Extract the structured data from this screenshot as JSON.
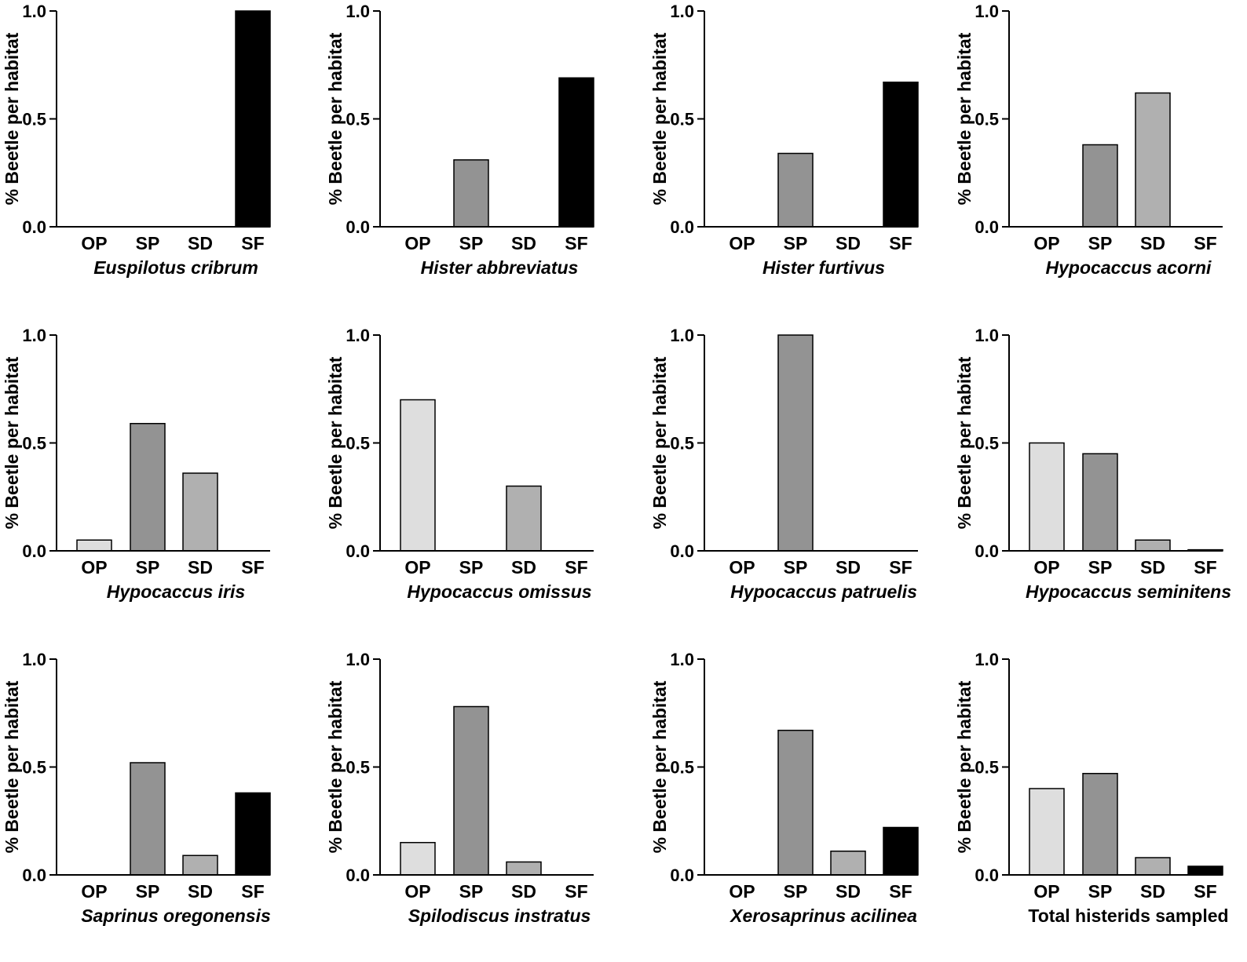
{
  "chart_data": [
    {
      "type": "bar",
      "title": "Euspilotus cribrum",
      "title_italic": true,
      "ylabel": "% Beetle per habitat",
      "categories": [
        "OP",
        "SP",
        "SD",
        "SF"
      ],
      "values": [
        0,
        0,
        0,
        1.0
      ],
      "ylim": [
        0,
        1.0
      ],
      "yticks": [
        "0.0",
        "0.5",
        "1.0"
      ],
      "grid": false
    },
    {
      "type": "bar",
      "title": "Hister abbreviatus",
      "title_italic": true,
      "ylabel": "% Beetle per habitat",
      "categories": [
        "OP",
        "SP",
        "SD",
        "SF"
      ],
      "values": [
        0,
        0.31,
        0,
        0.69
      ],
      "ylim": [
        0,
        1.0
      ],
      "yticks": [
        "0.0",
        "0.5",
        "1.0"
      ],
      "grid": false
    },
    {
      "type": "bar",
      "title": "Hister furtivus",
      "title_italic": true,
      "ylabel": "% Beetle per habitat",
      "categories": [
        "OP",
        "SP",
        "SD",
        "SF"
      ],
      "values": [
        0,
        0.34,
        0,
        0.67
      ],
      "ylim": [
        0,
        1.0
      ],
      "yticks": [
        "0.0",
        "0.5",
        "1.0"
      ],
      "grid": false
    },
    {
      "type": "bar",
      "title": "Hypocaccus acorni",
      "title_italic": true,
      "ylabel": "% Beetle per habitat",
      "categories": [
        "OP",
        "SP",
        "SD",
        "SF"
      ],
      "values": [
        0,
        0.38,
        0.62,
        0
      ],
      "ylim": [
        0,
        1.0
      ],
      "yticks": [
        "0.0",
        "0.5",
        "1.0"
      ],
      "grid": false
    },
    {
      "type": "bar",
      "title": "Hypocaccus iris",
      "title_italic": true,
      "ylabel": "% Beetle per habitat",
      "categories": [
        "OP",
        "SP",
        "SD",
        "SF"
      ],
      "values": [
        0.05,
        0.59,
        0.36,
        0
      ],
      "ylim": [
        0,
        1.0
      ],
      "yticks": [
        "0.0",
        "0.5",
        "1.0"
      ],
      "grid": false
    },
    {
      "type": "bar",
      "title": "Hypocaccus omissus",
      "title_italic": true,
      "ylabel": "% Beetle per habitat",
      "categories": [
        "OP",
        "SP",
        "SD",
        "SF"
      ],
      "values": [
        0.7,
        0,
        0.3,
        0
      ],
      "ylim": [
        0,
        1.0
      ],
      "yticks": [
        "0.0",
        "0.5",
        "1.0"
      ],
      "grid": false
    },
    {
      "type": "bar",
      "title": "Hypocaccus patruelis",
      "title_italic": true,
      "ylabel": "% Beetle per habitat",
      "categories": [
        "OP",
        "SP",
        "SD",
        "SF"
      ],
      "values": [
        0,
        1.0,
        0,
        0
      ],
      "ylim": [
        0,
        1.0
      ],
      "yticks": [
        "0.0",
        "0.5",
        "1.0"
      ],
      "grid": false
    },
    {
      "type": "bar",
      "title": "Hypocaccus seminitens",
      "title_italic": true,
      "ylabel": "% Beetle per habitat",
      "categories": [
        "OP",
        "SP",
        "SD",
        "SF"
      ],
      "values": [
        0.5,
        0.45,
        0.05,
        0.005
      ],
      "ylim": [
        0,
        1.0
      ],
      "yticks": [
        "0.0",
        "0.5",
        "1.0"
      ],
      "grid": false
    },
    {
      "type": "bar",
      "title": "Saprinus oregonensis",
      "title_italic": true,
      "ylabel": "% Beetle per habitat",
      "categories": [
        "OP",
        "SP",
        "SD",
        "SF"
      ],
      "values": [
        0,
        0.52,
        0.09,
        0.38
      ],
      "ylim": [
        0,
        1.0
      ],
      "yticks": [
        "0.0",
        "0.5",
        "1.0"
      ],
      "grid": false
    },
    {
      "type": "bar",
      "title": "Spilodiscus instratus",
      "title_italic": true,
      "ylabel": "% Beetle per habitat",
      "categories": [
        "OP",
        "SP",
        "SD",
        "SF"
      ],
      "values": [
        0.15,
        0.78,
        0.06,
        0
      ],
      "ylim": [
        0,
        1.0
      ],
      "yticks": [
        "0.0",
        "0.5",
        "1.0"
      ],
      "grid": false
    },
    {
      "type": "bar",
      "title": "Xerosaprinus acilinea",
      "title_italic": true,
      "ylabel": "% Beetle per habitat",
      "categories": [
        "OP",
        "SP",
        "SD",
        "SF"
      ],
      "values": [
        0,
        0.67,
        0.11,
        0.22
      ],
      "ylim": [
        0,
        1.0
      ],
      "yticks": [
        "0.0",
        "0.5",
        "1.0"
      ],
      "grid": false
    },
    {
      "type": "bar",
      "title": "Total histerids sampled",
      "title_italic": false,
      "ylabel": "% Beetle per habitat",
      "categories": [
        "OP",
        "SP",
        "SD",
        "SF"
      ],
      "values": [
        0.4,
        0.47,
        0.08,
        0.04
      ],
      "ylim": [
        0,
        1.0
      ],
      "yticks": [
        "0.0",
        "0.5",
        "1.0"
      ],
      "grid": false
    }
  ],
  "colors": {
    "OP": "#dedede",
    "SP": "#939393",
    "SD": "#b0b0b0",
    "SF": "#000000",
    "axis": "#000000"
  }
}
